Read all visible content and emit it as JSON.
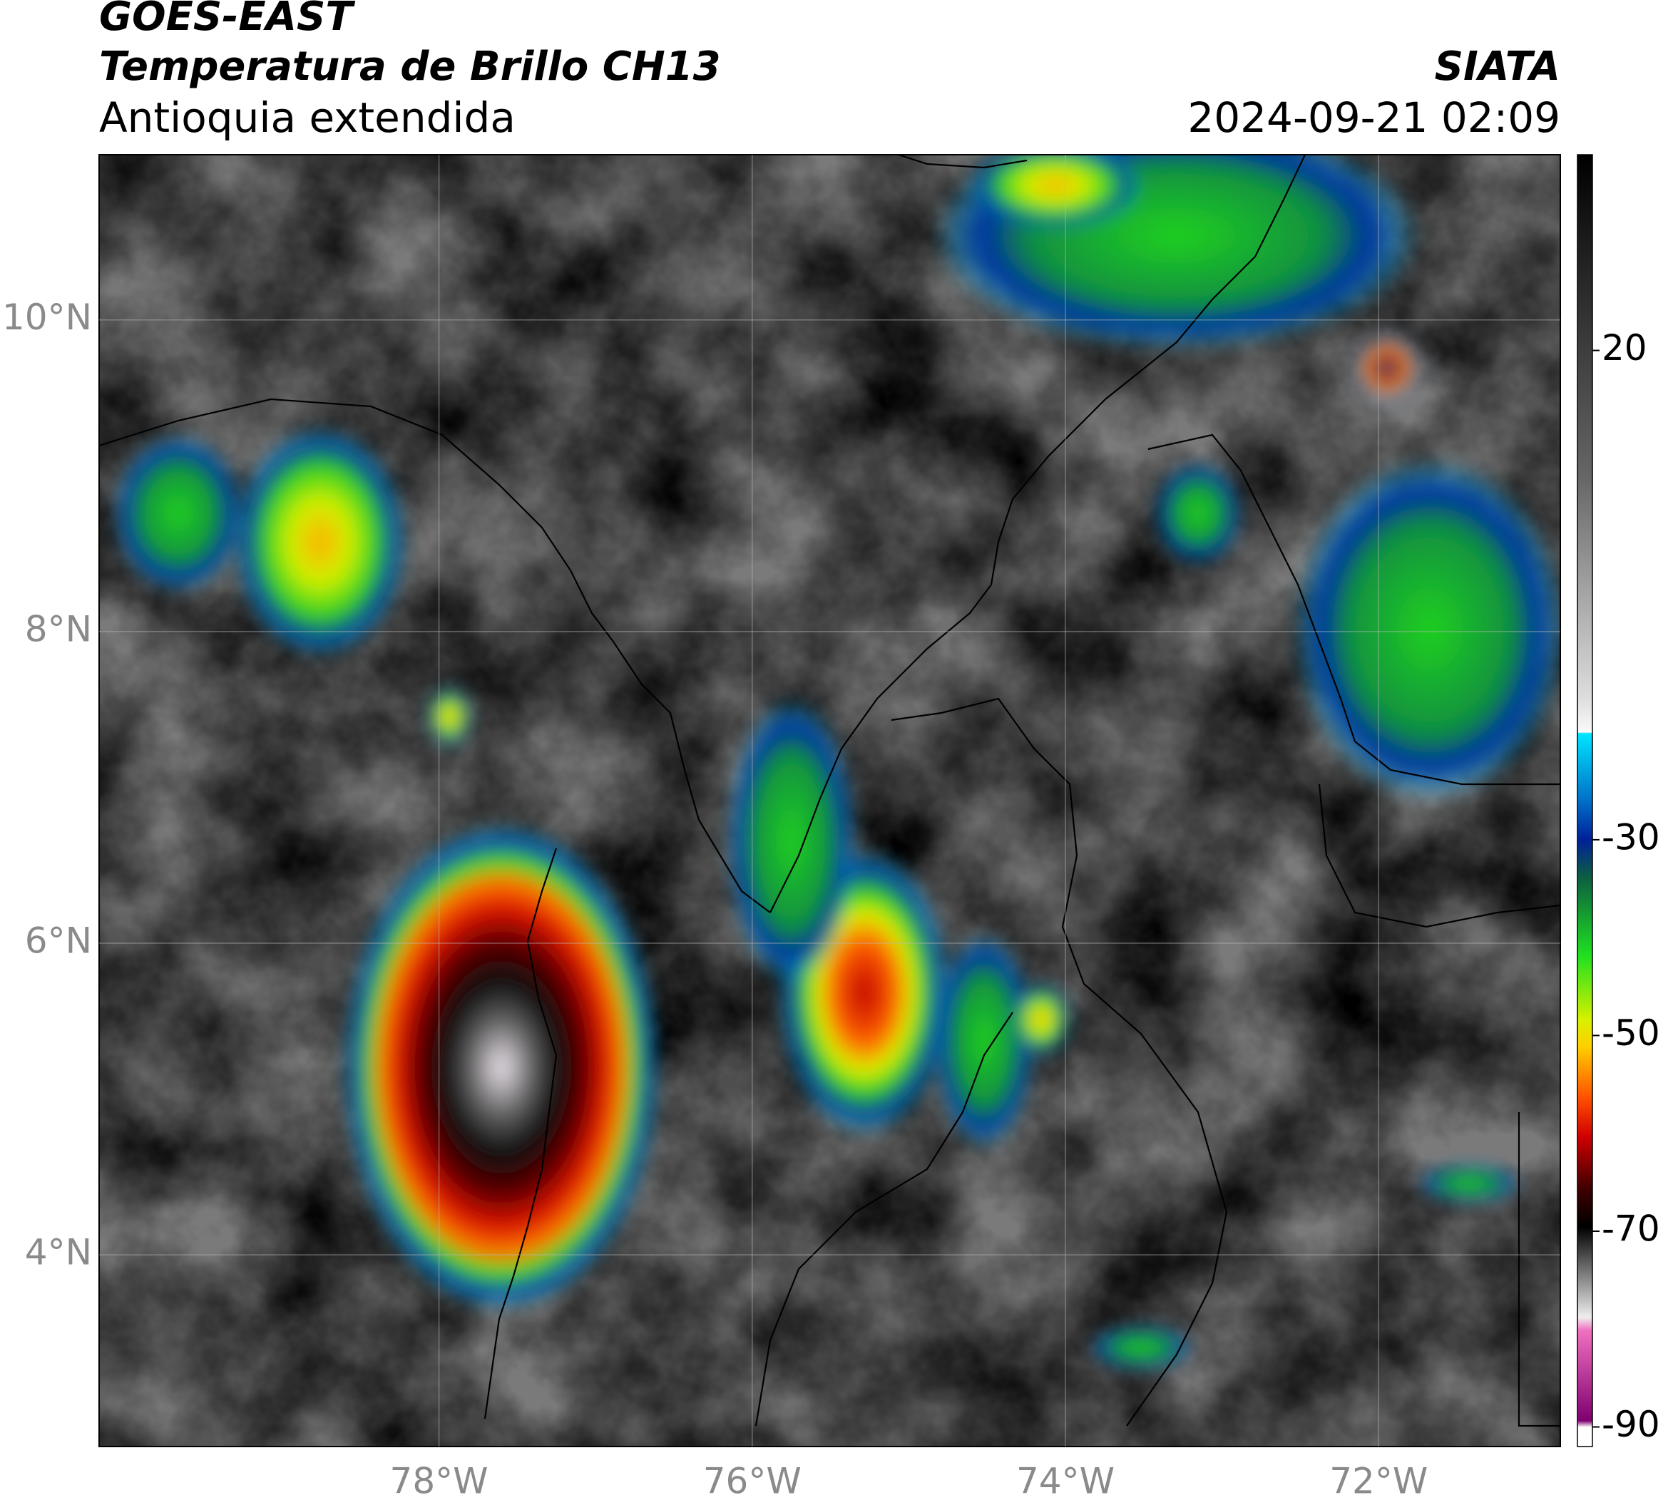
{
  "header": {
    "title": "GOES-EAST",
    "subtitle": "Temperatura de Brillo CH13",
    "region": "Antioquia extendida",
    "source": "SIATA",
    "timestamp": "2024-09-21 02:09"
  },
  "map": {
    "xlim": [
      -80.17,
      -70.84
    ],
    "ylim": [
      2.77,
      11.06
    ],
    "xticks": [
      {
        "value": -78,
        "label": "78°W"
      },
      {
        "value": -76,
        "label": "76°W"
      },
      {
        "value": -74,
        "label": "74°W"
      },
      {
        "value": -72,
        "label": "72°W"
      }
    ],
    "yticks": [
      {
        "value": 4,
        "label": "4°N"
      },
      {
        "value": 6,
        "label": "6°N"
      },
      {
        "value": 8,
        "label": "8°N"
      },
      {
        "value": 10,
        "label": "10°N"
      }
    ],
    "grid": true
  },
  "colorbar": {
    "lim": [
      -92,
      40
    ],
    "ticks": [
      20,
      -30,
      -50,
      -70,
      -90
    ]
  }
}
